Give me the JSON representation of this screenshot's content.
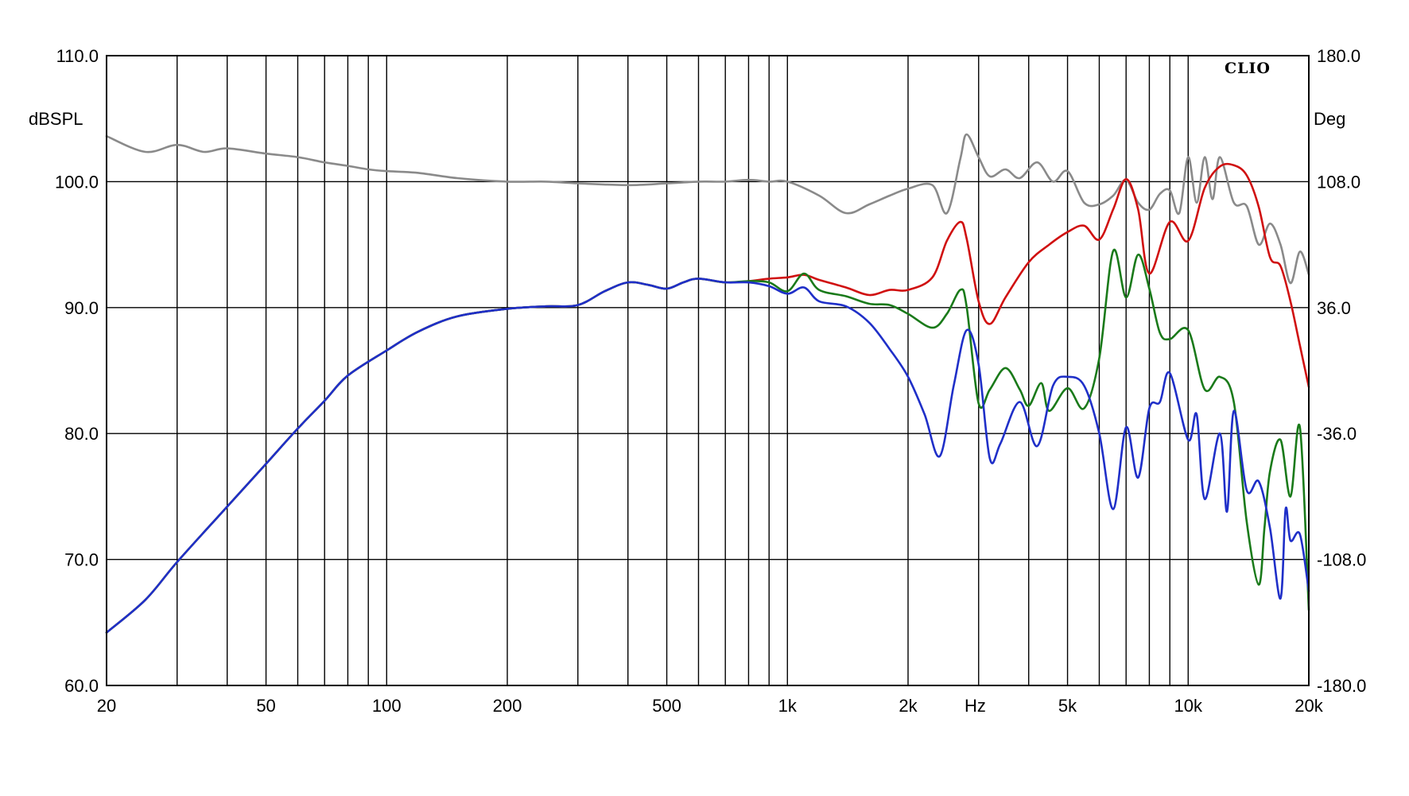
{
  "chart_data": {
    "type": "line",
    "brand": "CLIO",
    "xlabel": "Hz",
    "ylabel_left": "dBSPL",
    "ylabel_right": "Deg",
    "x_scale": "log",
    "xlim": [
      20,
      20000
    ],
    "ylim_left": [
      60,
      110
    ],
    "ylim_right": [
      -180,
      180
    ],
    "x_ticks": [
      {
        "value": 20,
        "label": "20"
      },
      {
        "value": 50,
        "label": "50"
      },
      {
        "value": 100,
        "label": "100"
      },
      {
        "value": 200,
        "label": "200"
      },
      {
        "value": 500,
        "label": "500"
      },
      {
        "value": 1000,
        "label": "1k"
      },
      {
        "value": 2000,
        "label": "2k"
      },
      {
        "value": 5000,
        "label": "5k"
      },
      {
        "value": 10000,
        "label": "10k"
      },
      {
        "value": 20000,
        "label": "20k"
      }
    ],
    "x_gridlines": [
      20,
      30,
      40,
      50,
      60,
      70,
      80,
      90,
      100,
      200,
      300,
      400,
      500,
      600,
      700,
      800,
      900,
      1000,
      2000,
      3000,
      4000,
      5000,
      6000,
      7000,
      8000,
      9000,
      10000,
      20000
    ],
    "y_ticks_left": [
      "110.0",
      "100.0",
      "90.0",
      "80.0",
      "70.0",
      "60.0"
    ],
    "y_ticks_right": [
      "180.0",
      "108.0",
      "36.0",
      "-36.0",
      "-108.0",
      "-180.0"
    ],
    "grid": true,
    "series": [
      {
        "color": "#d01010",
        "axis": "left",
        "x": [
          20,
          25,
          30,
          40,
          50,
          60,
          70,
          80,
          100,
          120,
          150,
          200,
          250,
          300,
          350,
          400,
          450,
          500,
          550,
          600,
          700,
          800,
          900,
          1000,
          1100,
          1200,
          1400,
          1600,
          1800,
          2000,
          2300,
          2500,
          2700,
          2800,
          3000,
          3200,
          3500,
          4000,
          4500,
          5000,
          5500,
          6000,
          6500,
          7000,
          7500,
          8000,
          9000,
          10000,
          11000,
          12000,
          13000,
          14000,
          15000,
          16000,
          17000,
          18000,
          19000,
          20000
        ],
        "y": [
          64.2,
          66.8,
          69.8,
          74.2,
          77.6,
          80.4,
          82.6,
          84.6,
          86.6,
          88.1,
          89.3,
          89.9,
          90.1,
          90.2,
          91.3,
          92.0,
          91.8,
          91.5,
          92.0,
          92.3,
          92.0,
          92.1,
          92.3,
          92.4,
          92.6,
          92.2,
          91.6,
          91.0,
          91.4,
          91.4,
          92.4,
          95.3,
          96.8,
          95.5,
          90.5,
          88.7,
          90.8,
          93.6,
          95.0,
          96.0,
          96.5,
          95.4,
          97.8,
          100.2,
          97.8,
          92.7,
          96.8,
          95.3,
          99.5,
          101.2,
          101.3,
          100.5,
          98.0,
          94.0,
          93.3,
          90.5,
          87.0,
          83.7
        ]
      },
      {
        "color": "#1a7a1a",
        "axis": "left",
        "x": [
          20,
          25,
          30,
          40,
          50,
          60,
          70,
          80,
          100,
          120,
          150,
          200,
          250,
          300,
          350,
          400,
          450,
          500,
          550,
          600,
          700,
          800,
          900,
          1000,
          1100,
          1200,
          1400,
          1600,
          1800,
          2000,
          2300,
          2500,
          2700,
          2800,
          3000,
          3200,
          3500,
          3800,
          4000,
          4300,
          4500,
          5000,
          5500,
          6000,
          6500,
          7000,
          7500,
          8000,
          8500,
          9000,
          10000,
          11000,
          12000,
          13000,
          14000,
          15000,
          15500,
          16000,
          17000,
          18000,
          19000,
          20000
        ],
        "y": [
          64.2,
          66.8,
          69.8,
          74.2,
          77.6,
          80.4,
          82.6,
          84.6,
          86.6,
          88.1,
          89.3,
          89.9,
          90.1,
          90.2,
          91.3,
          92.0,
          91.8,
          91.5,
          92.0,
          92.3,
          92.0,
          92.1,
          92.0,
          91.3,
          92.7,
          91.4,
          90.9,
          90.3,
          90.2,
          89.5,
          88.4,
          89.5,
          91.4,
          90.1,
          82.4,
          83.5,
          85.2,
          83.5,
          82.2,
          84.0,
          81.8,
          83.6,
          82.0,
          86.0,
          94.5,
          90.8,
          94.2,
          91.5,
          88.0,
          87.5,
          88.2,
          83.5,
          84.5,
          82.5,
          73.0,
          68.0,
          72.5,
          77.0,
          79.5,
          75.0,
          80.5,
          66.0
        ]
      },
      {
        "color": "#1f2fc8",
        "axis": "left",
        "x": [
          20,
          25,
          30,
          40,
          50,
          60,
          70,
          80,
          100,
          120,
          150,
          200,
          250,
          300,
          350,
          400,
          450,
          500,
          550,
          600,
          700,
          800,
          900,
          1000,
          1100,
          1200,
          1400,
          1600,
          1800,
          2000,
          2200,
          2400,
          2600,
          2800,
          3000,
          3200,
          3400,
          3800,
          4200,
          4600,
          5000,
          5500,
          6000,
          6500,
          7000,
          7500,
          8000,
          8500,
          9000,
          10000,
          10500,
          11000,
          12000,
          12500,
          13000,
          14000,
          15000,
          16000,
          17000,
          17500,
          18000,
          19000,
          20000
        ],
        "y": [
          64.2,
          66.8,
          69.8,
          74.2,
          77.6,
          80.4,
          82.6,
          84.6,
          86.6,
          88.1,
          89.3,
          89.9,
          90.1,
          90.2,
          91.3,
          92.0,
          91.8,
          91.5,
          92.0,
          92.3,
          92.0,
          92.0,
          91.7,
          91.1,
          91.6,
          90.5,
          90.1,
          88.8,
          86.7,
          84.5,
          81.5,
          78.2,
          83.8,
          88.2,
          85.5,
          78.0,
          79.2,
          82.5,
          79.0,
          83.8,
          84.5,
          83.8,
          80.0,
          74.0,
          80.5,
          76.5,
          82.0,
          82.5,
          84.8,
          79.5,
          81.5,
          74.8,
          80.0,
          73.8,
          81.8,
          75.5,
          76.2,
          72.5,
          66.9,
          74.0,
          71.5,
          72.0,
          67.5
        ]
      },
      {
        "color": "#8a8a8a",
        "axis": "right",
        "x": [
          20,
          25,
          30,
          35,
          40,
          50,
          60,
          70,
          80,
          90,
          100,
          120,
          150,
          200,
          250,
          300,
          400,
          500,
          600,
          700,
          800,
          900,
          1000,
          1200,
          1400,
          1600,
          1800,
          2000,
          2300,
          2500,
          2700,
          2800,
          3000,
          3200,
          3500,
          3800,
          4200,
          4600,
          5000,
          5500,
          6000,
          6500,
          7000,
          7500,
          8000,
          8500,
          9000,
          9500,
          10000,
          10500,
          11000,
          11500,
          12000,
          13000,
          14000,
          15000,
          16000,
          17000,
          18000,
          19000,
          20000
        ],
        "y": [
          134,
          125,
          129,
          125,
          127,
          124,
          122,
          119,
          117,
          115,
          114,
          113,
          110,
          108,
          108,
          107,
          106,
          107,
          108,
          108,
          109,
          108,
          108,
          100,
          90,
          95,
          100,
          104,
          106,
          90,
          121,
          135,
          122,
          111,
          115,
          110,
          119,
          108,
          114,
          96,
          95,
          100,
          109,
          96,
          92,
          101,
          103,
          90,
          122,
          96,
          122,
          98,
          122,
          96,
          94,
          72,
          84,
          72,
          50,
          68,
          55
        ]
      }
    ]
  }
}
